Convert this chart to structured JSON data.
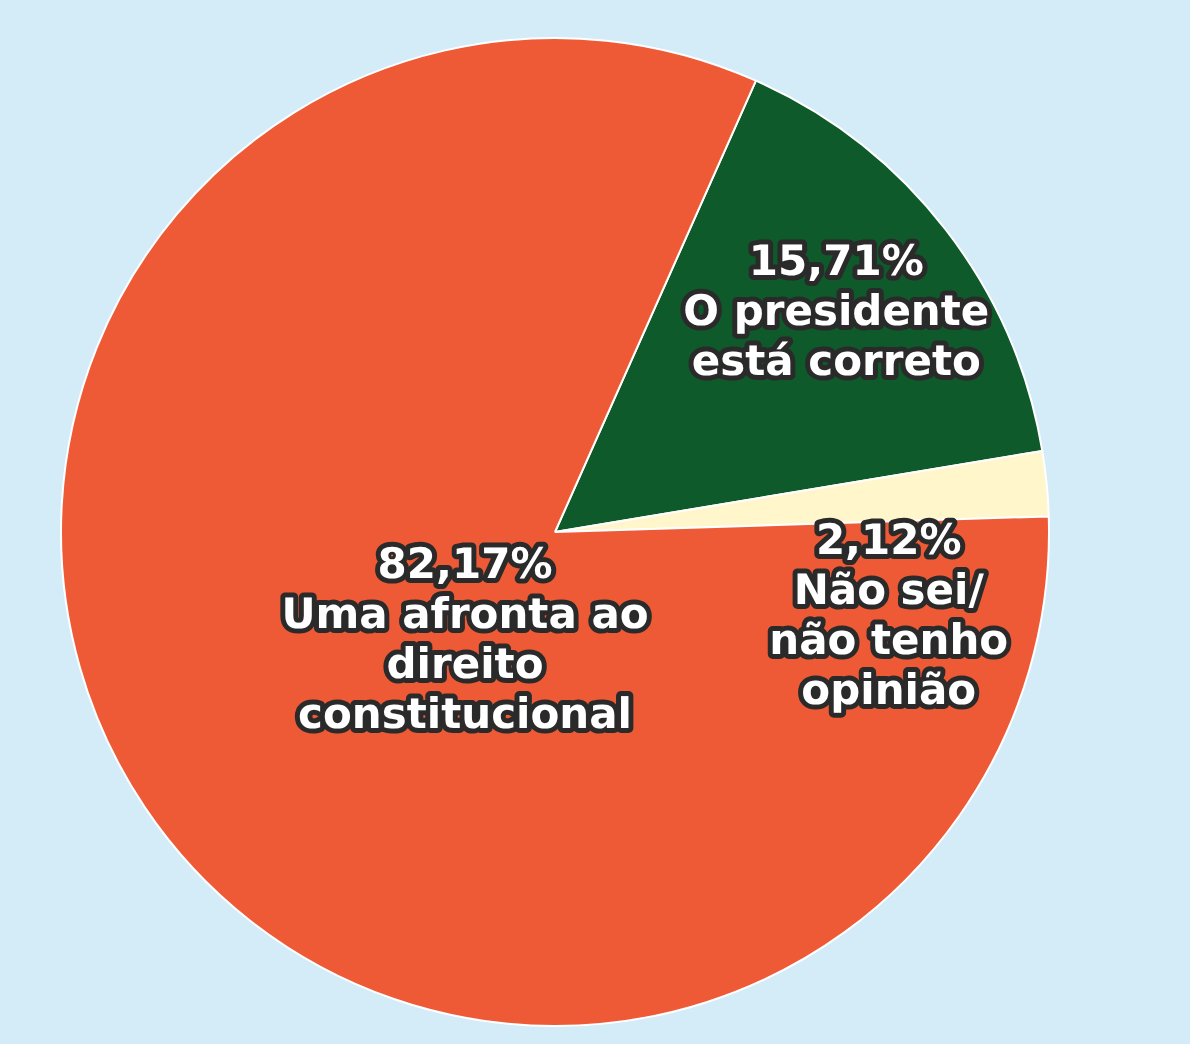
{
  "chart_data": {
    "type": "pie",
    "categories": [
      "O presidente está correto",
      "Não sei/ não tenho opinião",
      "Uma afronta ao direito constitucional"
    ],
    "values": [
      15.71,
      2.12,
      82.17
    ],
    "colors": [
      "#0e5a2a",
      "#fff6cc",
      "#ee5a36"
    ],
    "value_labels": [
      "15,71%",
      "2,12%",
      "82,17%"
    ],
    "legend": false
  }
}
